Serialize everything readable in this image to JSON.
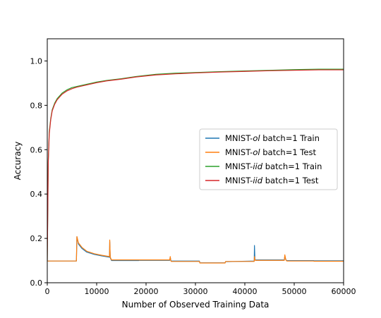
{
  "chart_data": {
    "type": "line",
    "xlabel": "Number of Observed Training Data",
    "ylabel": "Accuracy",
    "xlim": [
      0,
      60000
    ],
    "ylim": [
      0.0,
      1.1
    ],
    "xticks": [
      0,
      10000,
      20000,
      30000,
      40000,
      50000,
      60000
    ],
    "xtick_labels": [
      "0",
      "10000",
      "20000",
      "30000",
      "40000",
      "50000",
      "60000"
    ],
    "yticks": [
      0.0,
      0.2,
      0.4,
      0.6,
      0.8,
      1.0
    ],
    "ytick_labels": [
      "0.0",
      "0.2",
      "0.4",
      "0.6",
      "0.8",
      "1.0"
    ],
    "grid": false,
    "legend_position": "center-right",
    "series": [
      {
        "name": "MNIST-ol batch=1 Train",
        "legend_prefix": "MNIST-",
        "legend_italic": "ol",
        "legend_suffix": " batch=1 Train",
        "color": "#1f77b4",
        "x": [
          0,
          5900,
          6000,
          6300,
          7000,
          8000,
          9500,
          11000,
          12600,
          12650,
          12750,
          13000,
          15000,
          18500,
          18600,
          24800,
          24900,
          25000,
          25100,
          30800,
          30900,
          36000,
          36100,
          41900,
          41950,
          42050,
          42150,
          48000,
          48100,
          48300,
          48500,
          53900,
          54000,
          60000
        ],
        "y": [
          0.098,
          0.098,
          0.208,
          0.175,
          0.155,
          0.138,
          0.128,
          0.121,
          0.115,
          0.186,
          0.113,
          0.1,
          0.1,
          0.1,
          0.101,
          0.101,
          0.115,
          0.102,
          0.098,
          0.098,
          0.09,
          0.09,
          0.095,
          0.098,
          0.168,
          0.104,
          0.103,
          0.103,
          0.121,
          0.104,
          0.1,
          0.1,
          0.099,
          0.099
        ]
      },
      {
        "name": "MNIST-ol batch=1 Test",
        "legend_prefix": "MNIST-",
        "legend_italic": "ol",
        "legend_suffix": " batch=1 Test",
        "color": "#ff7f0e",
        "x": [
          0,
          5900,
          6000,
          6300,
          7000,
          8000,
          9500,
          11000,
          12600,
          12650,
          12750,
          13000,
          15000,
          18500,
          18600,
          24800,
          24900,
          25000,
          25100,
          30800,
          30900,
          36000,
          36100,
          41900,
          41950,
          42050,
          42150,
          48000,
          48100,
          48300,
          48500,
          53900,
          54000,
          60000
        ],
        "y": [
          0.098,
          0.098,
          0.208,
          0.18,
          0.16,
          0.142,
          0.131,
          0.124,
          0.118,
          0.193,
          0.116,
          0.103,
          0.103,
          0.103,
          0.103,
          0.103,
          0.118,
          0.1,
          0.096,
          0.096,
          0.089,
          0.089,
          0.096,
          0.096,
          0.118,
          0.102,
          0.101,
          0.101,
          0.126,
          0.103,
          0.098,
          0.098,
          0.097,
          0.097
        ]
      },
      {
        "name": "MNIST-iid batch=1 Train",
        "legend_prefix": "MNIST-",
        "legend_italic": "iid",
        "legend_suffix": " batch=1 Train",
        "color": "#2ca02c",
        "x": [
          0,
          200,
          400,
          700,
          1000,
          1500,
          2000,
          3000,
          4000,
          5000,
          6000,
          8000,
          10000,
          12000,
          15000,
          18000,
          22000,
          26000,
          30000,
          35000,
          40000,
          45000,
          50000,
          55000,
          60000
        ],
        "y": [
          0.1,
          0.55,
          0.68,
          0.74,
          0.78,
          0.81,
          0.83,
          0.855,
          0.87,
          0.88,
          0.885,
          0.895,
          0.905,
          0.912,
          0.92,
          0.93,
          0.94,
          0.945,
          0.948,
          0.952,
          0.955,
          0.958,
          0.961,
          0.963,
          0.963
        ]
      },
      {
        "name": "MNIST-iid batch=1 Test",
        "legend_prefix": "MNIST-",
        "legend_italic": "iid",
        "legend_suffix": " batch=1 Test",
        "color": "#d62728",
        "x": [
          0,
          200,
          400,
          700,
          1000,
          1500,
          2000,
          3000,
          4000,
          5000,
          6000,
          8000,
          10000,
          12000,
          15000,
          18000,
          22000,
          26000,
          30000,
          35000,
          40000,
          45000,
          50000,
          55000,
          60000
        ],
        "y": [
          0.1,
          0.54,
          0.67,
          0.735,
          0.775,
          0.805,
          0.825,
          0.85,
          0.865,
          0.875,
          0.882,
          0.892,
          0.902,
          0.91,
          0.918,
          0.928,
          0.937,
          0.942,
          0.946,
          0.95,
          0.953,
          0.956,
          0.958,
          0.96,
          0.96
        ]
      }
    ]
  }
}
